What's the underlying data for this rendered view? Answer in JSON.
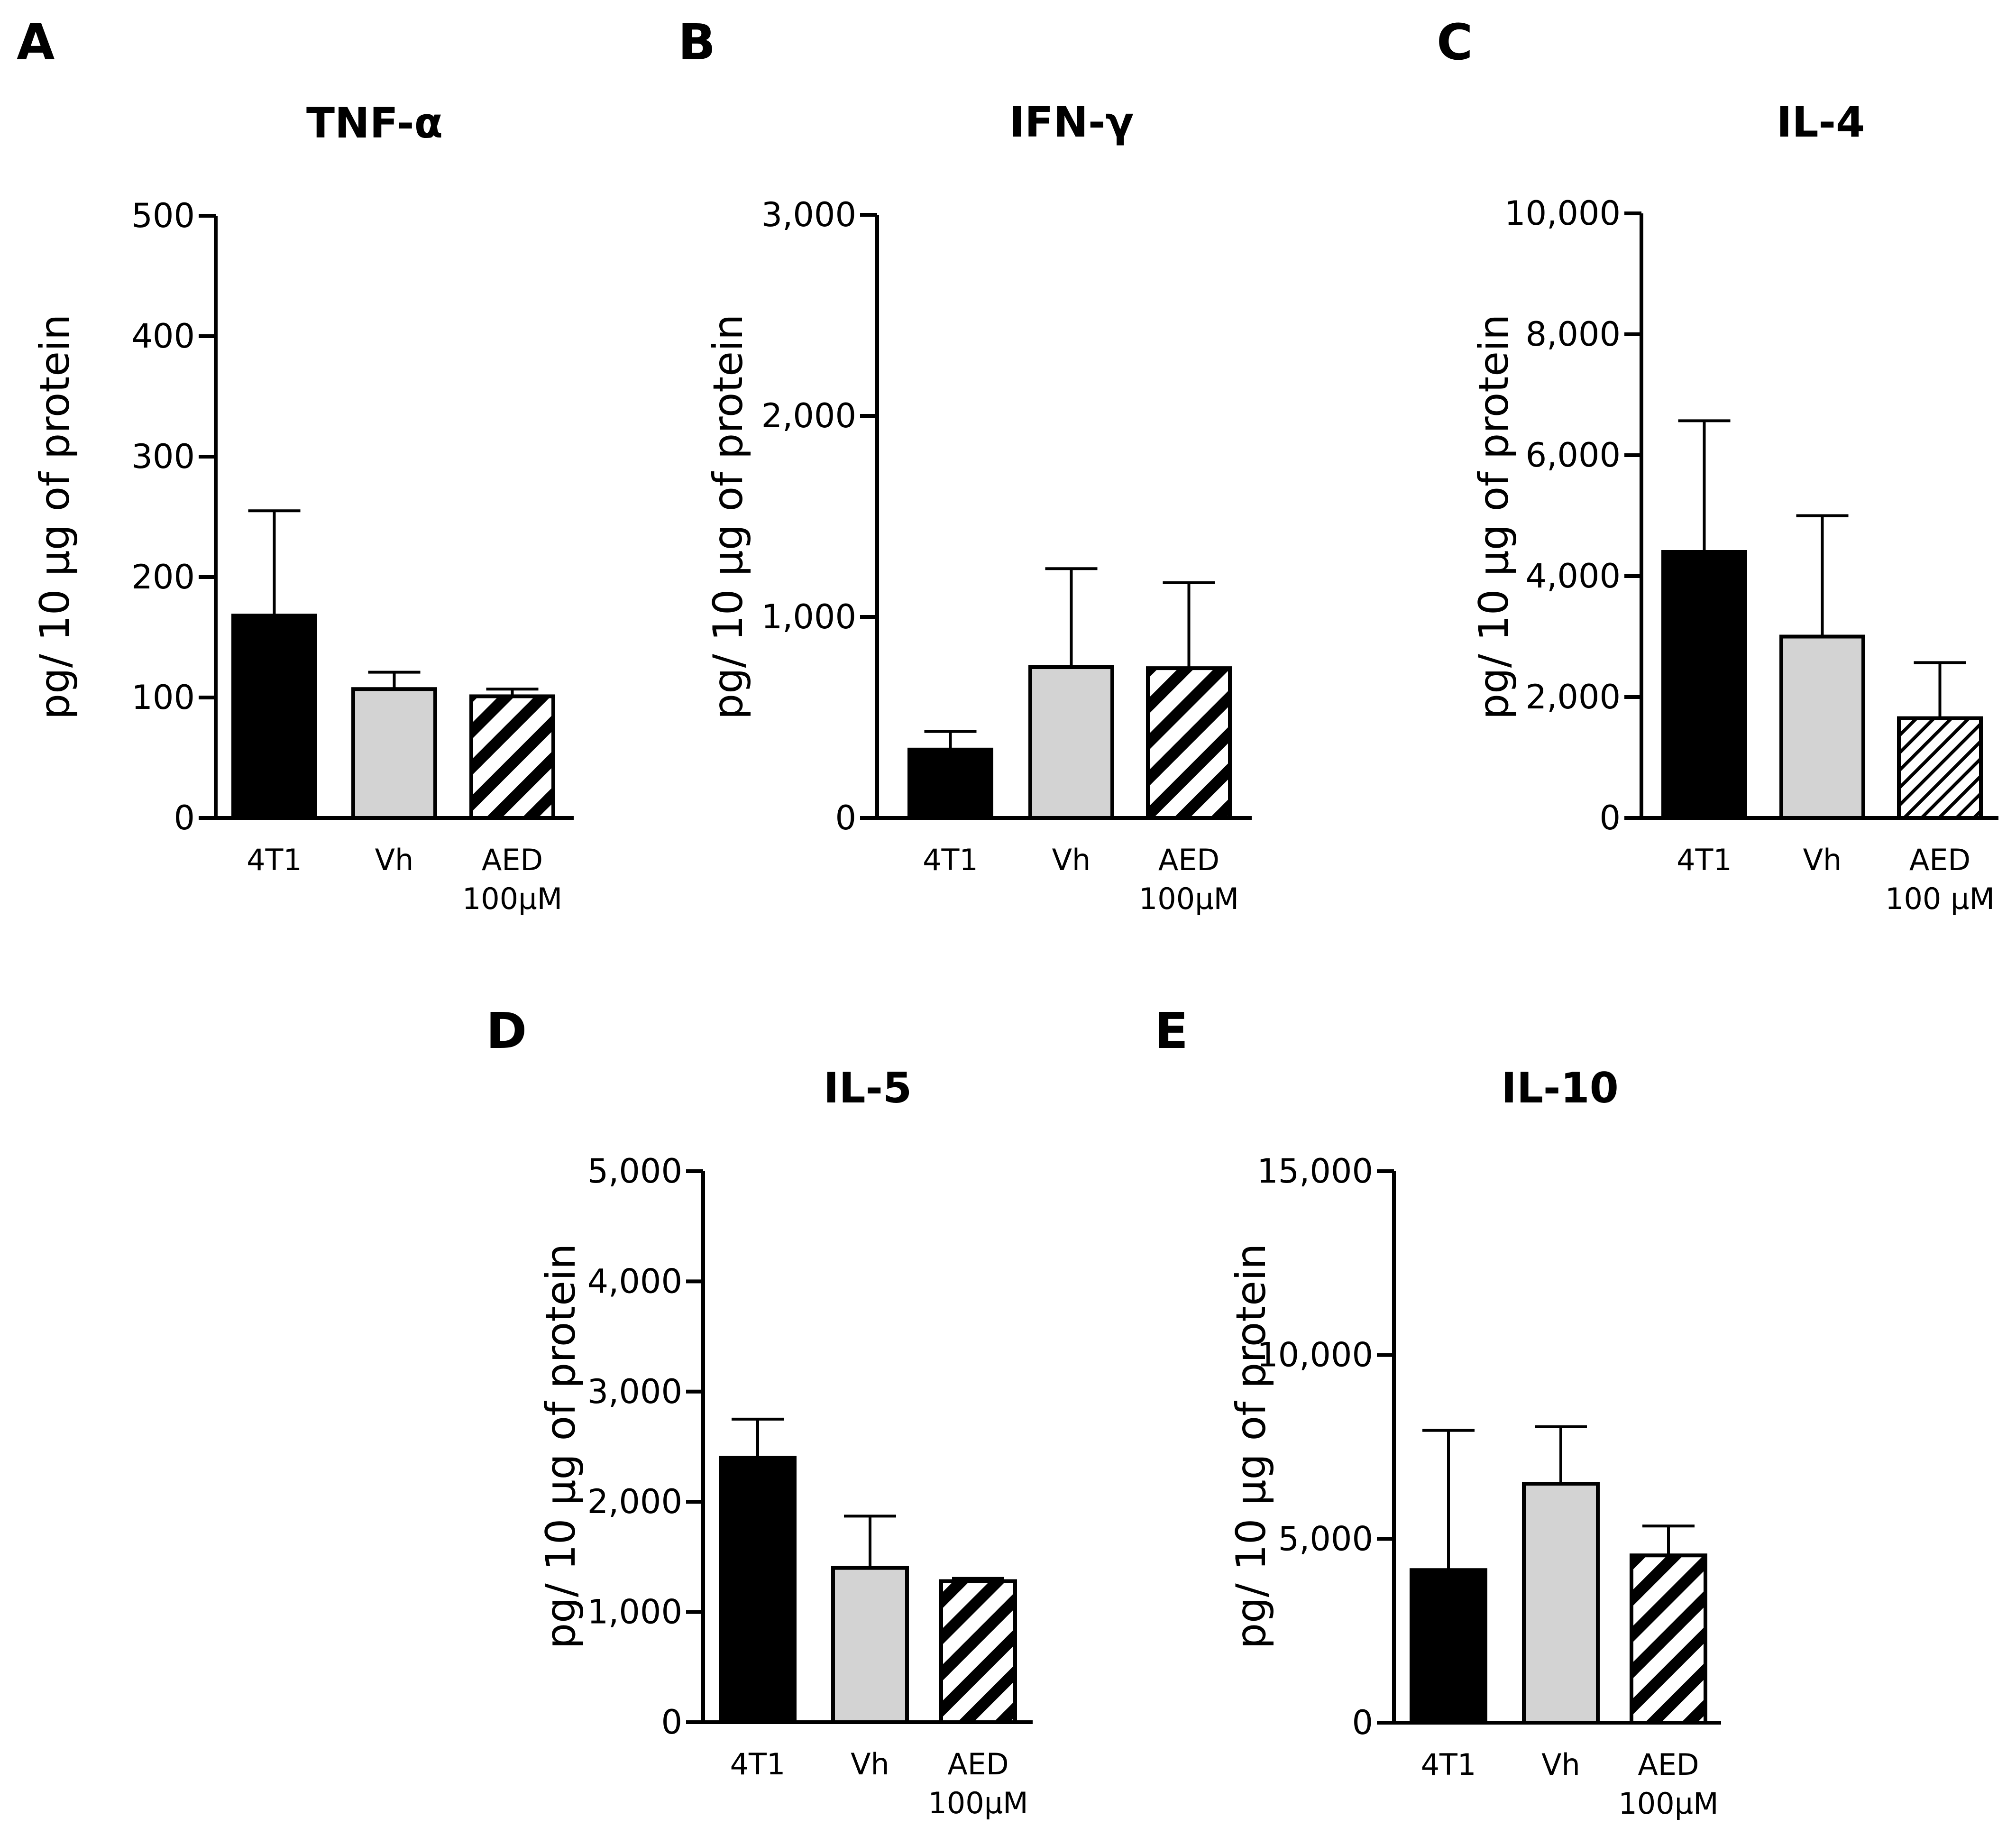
{
  "chart_data": [
    {
      "panel": "A",
      "type": "bar",
      "title": "TNF-α",
      "ylabel": "pg/ 10 µg of protein",
      "ylim": [
        0,
        500
      ],
      "yticks": [
        "0",
        "100",
        "200",
        "300",
        "400",
        "500"
      ],
      "tick_values": [
        0,
        100,
        200,
        300,
        400,
        500
      ],
      "categories": [
        [
          "4T1"
        ],
        [
          "Vh"
        ],
        [
          "AED",
          "100µM"
        ]
      ],
      "values": [
        168,
        107,
        101
      ],
      "errors": [
        87,
        14,
        6
      ],
      "styles": [
        "black",
        "gray",
        "hatch"
      ]
    },
    {
      "panel": "B",
      "type": "bar",
      "title": "IFN-γ",
      "ylabel": "pg/ 10 µg of protein",
      "ylim": [
        0,
        3000
      ],
      "yticks": [
        "0",
        "1,000",
        "2,000",
        "3,000"
      ],
      "tick_values": [
        0,
        1000,
        2000,
        3000
      ],
      "categories": [
        [
          "4T1"
        ],
        [
          "Vh"
        ],
        [
          "AED",
          "100µM"
        ]
      ],
      "values": [
        340,
        750,
        745
      ],
      "errors": [
        90,
        490,
        425
      ],
      "styles": [
        "black",
        "gray",
        "hatch"
      ]
    },
    {
      "panel": "C",
      "type": "bar",
      "title": "IL-4",
      "ylabel": "pg/ 10 µg of protein",
      "ylim": [
        0,
        10000
      ],
      "yticks": [
        "0",
        "2,000",
        "4,000",
        "6,000",
        "8,000",
        "10,000"
      ],
      "tick_values": [
        0,
        2000,
        4000,
        6000,
        8000,
        10000
      ],
      "categories": [
        [
          "4T1"
        ],
        [
          "Vh"
        ],
        [
          "AED",
          "100 µM"
        ]
      ],
      "values": [
        4400,
        3000,
        1650
      ],
      "errors": [
        2170,
        2000,
        920
      ],
      "styles": [
        "black",
        "gray",
        "hatch-fine"
      ]
    },
    {
      "panel": "D",
      "type": "bar",
      "title": "IL-5",
      "ylabel": "pg/ 10 µg of protein",
      "ylim": [
        0,
        5000
      ],
      "yticks": [
        "0",
        "1,000",
        "2,000",
        "3,000",
        "4,000",
        "5,000"
      ],
      "tick_values": [
        0,
        1000,
        2000,
        3000,
        4000,
        5000
      ],
      "categories": [
        [
          "4T1"
        ],
        [
          "Vh"
        ],
        [
          "AED",
          "100µM"
        ]
      ],
      "values": [
        2400,
        1400,
        1280
      ],
      "errors": [
        350,
        470,
        25
      ],
      "styles": [
        "black",
        "gray",
        "hatch"
      ]
    },
    {
      "panel": "E",
      "type": "bar",
      "title": "IL-10",
      "ylabel": "pg/ 10 µg of protein",
      "ylim": [
        0,
        15000
      ],
      "yticks": [
        "0",
        "5,000",
        "10,000",
        "15,000"
      ],
      "tick_values": [
        0,
        5000,
        10000,
        15000
      ],
      "categories": [
        [
          "4T1"
        ],
        [
          "Vh"
        ],
        [
          "AED",
          "100µM"
        ]
      ],
      "values": [
        4150,
        6500,
        4550
      ],
      "errors": [
        3800,
        1550,
        800
      ],
      "styles": [
        "black",
        "gray",
        "hatch"
      ]
    }
  ],
  "colors": {
    "black_bar": "#000000",
    "gray_bar": "#d3d3d3",
    "hatch_stripe": "#000000",
    "hatch_bg": "#ffffff"
  }
}
